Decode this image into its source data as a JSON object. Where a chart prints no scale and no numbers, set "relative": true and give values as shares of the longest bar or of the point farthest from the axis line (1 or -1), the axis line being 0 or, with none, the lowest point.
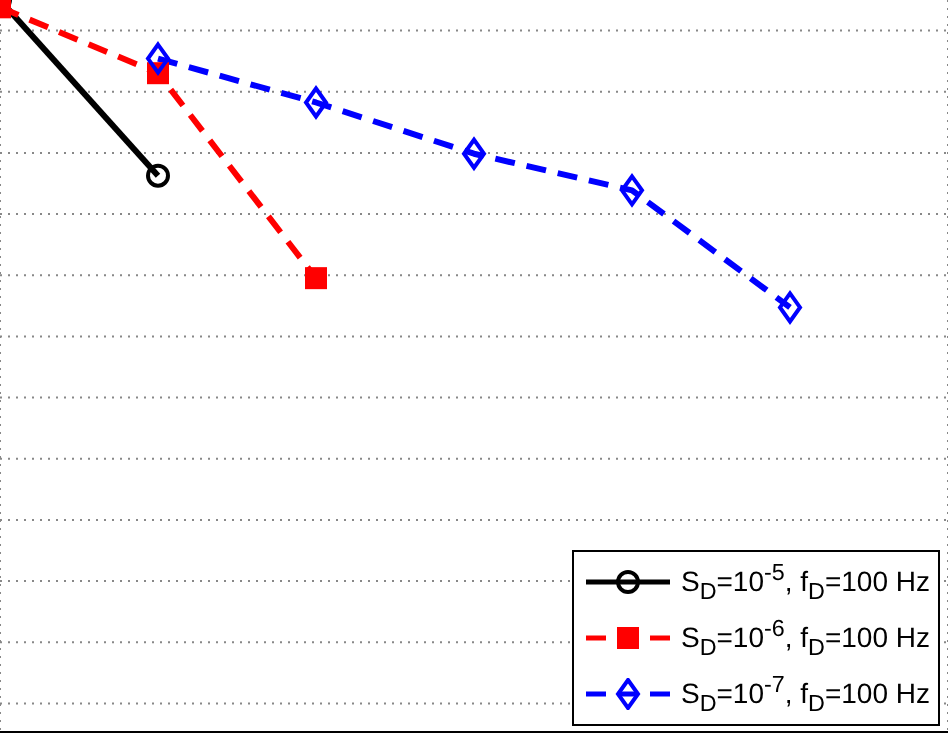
{
  "chart_data": {
    "type": "line",
    "relative": true,
    "categories": [
      null,
      null,
      null,
      null,
      null,
      null,
      null
    ],
    "tick_labels": false,
    "grid": true,
    "legend": "bottom right",
    "series": [
      {
        "name": "S$_{D}$=10$^{-5}$, f$_{D}$=100 Hz",
        "color": "#000000",
        "marker": "circle",
        "line_style": "solid",
        "values": [
          1,
          0.76,
          null,
          null,
          null,
          null,
          null
        ]
      },
      {
        "name": "S$_{D}$=10$^{-6}$, f$_{D}$=100 Hz",
        "color": "#ff0000",
        "marker": "square",
        "line_style": "dashed",
        "values": [
          0.99,
          0.9,
          0.62,
          null,
          null,
          null,
          null
        ]
      },
      {
        "name": "S$_{D}$=10$^{-7}$, f$_{D}$=100 Hz",
        "color": "#0000ff",
        "marker": "diamond",
        "line_style": "dashed",
        "values": [
          null,
          0.92,
          0.86,
          0.79,
          0.74,
          0.58,
          null
        ]
      }
    ]
  }
}
